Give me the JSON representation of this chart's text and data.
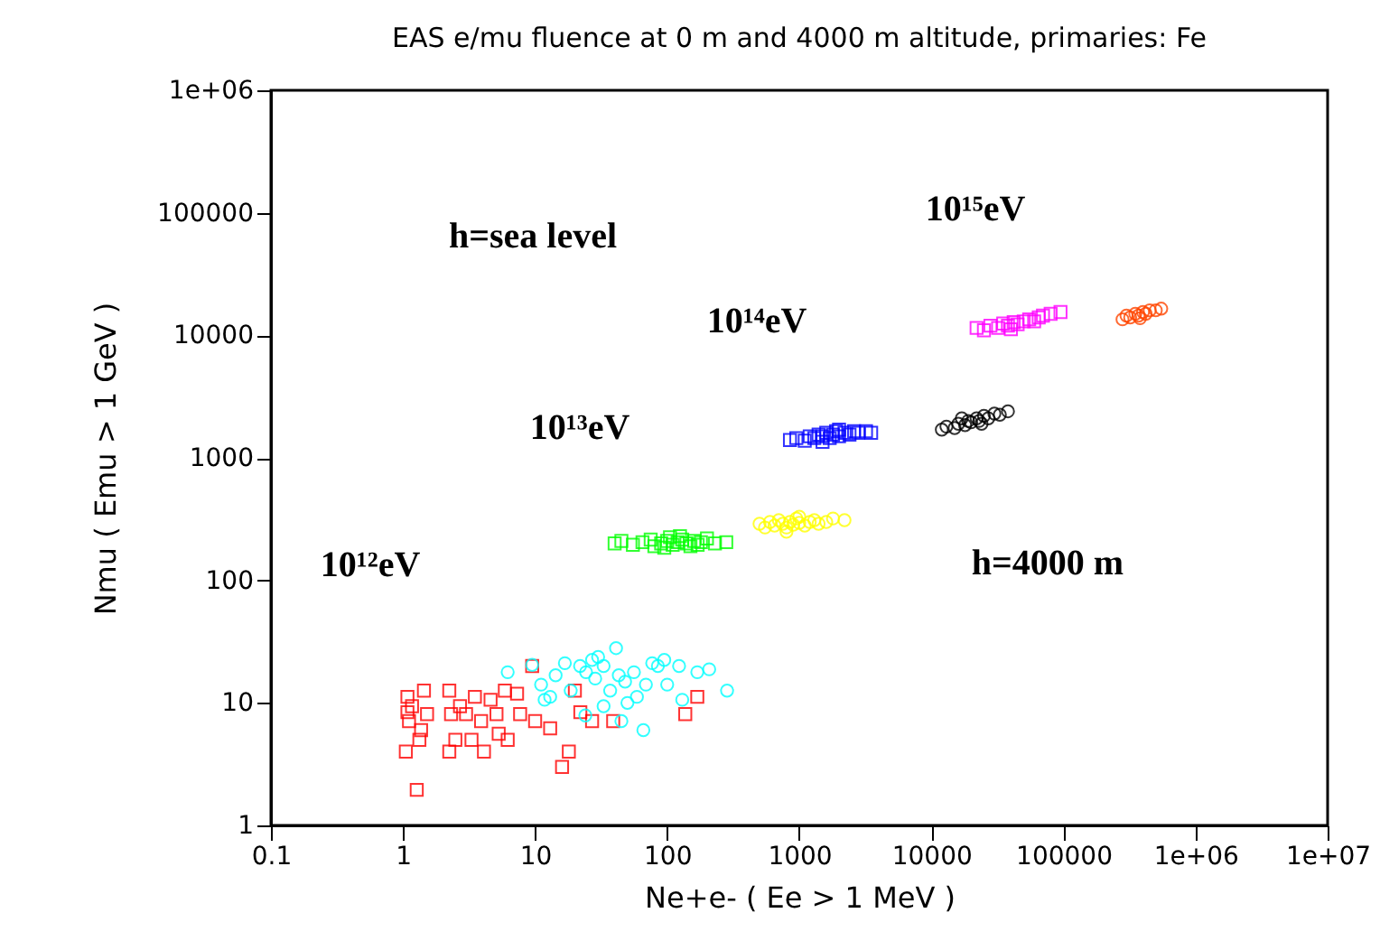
{
  "chart_data": {
    "type": "scatter",
    "title": "EAS e/mu fluence at 0 m and 4000 m altitude, primaries: Fe",
    "xlabel": "Ne+e-   ( Ee > 1 MeV )",
    "ylabel": "Nmu   ( Emu > 1 GeV )",
    "log": "xy",
    "grid": false,
    "xlim": [
      0.1,
      10000000
    ],
    "ylim": [
      1,
      1000000
    ],
    "xticks": [
      0.1,
      1,
      10,
      100,
      1000,
      10000,
      100000,
      {
        "value": 1000000,
        "label": "1e+06"
      },
      {
        "value": 10000000,
        "label": "1e+07"
      }
    ],
    "yticks": [
      1,
      10,
      100,
      1000,
      10000,
      100000,
      {
        "value": 1000000,
        "label": "1e+06"
      }
    ],
    "series": [
      {
        "color": "#ff0000",
        "marker": "square",
        "x": [
          1.08,
          1.08,
          1.11,
          1.17,
          1.05,
          1.27,
          1.37,
          1.33,
          1.44,
          1.52,
          2.24,
          2.31,
          2.24,
          2.49,
          2.7,
          3.0,
          3.3,
          3.5,
          3.9,
          4.1,
          4.6,
          5.1,
          5.3,
          5.9,
          6.2,
          7.3,
          7.7,
          9.5,
          10,
          13,
          16,
          18,
          22,
          27,
          39,
          137,
          169,
          20
        ],
        "values": [
          11.2,
          8.4,
          7.1,
          9.4,
          4.0,
          1.95,
          6.0,
          5.0,
          12.6,
          8.1,
          12.6,
          8.1,
          4.0,
          5.0,
          9.4,
          8.1,
          5.0,
          11.2,
          7.1,
          4.0,
          10.6,
          8.1,
          5.6,
          12.6,
          5.0,
          11.9,
          8.1,
          20,
          7.1,
          6.2,
          3.0,
          4.0,
          8.4,
          7.1,
          7.1,
          8.1,
          11.2,
          12.6
        ]
      },
      {
        "color": "#00ffff",
        "marker": "circle",
        "x": [
          6.2,
          9.5,
          11.1,
          11.8,
          13,
          14.3,
          16.8,
          18.6,
          21.9,
          24.3,
          27,
          28.5,
          30,
          33,
          37,
          41,
          43,
          45,
          48,
          50,
          56,
          59,
          66,
          69,
          77,
          85,
          95,
          100,
          123,
          130,
          169,
          208,
          284,
          33,
          24
        ],
        "values": [
          17.8,
          20.4,
          14.1,
          10.6,
          11.2,
          16.8,
          21.1,
          12.6,
          20,
          17.8,
          22.4,
          15.8,
          23.7,
          20,
          12.6,
          28,
          16.8,
          7.1,
          14.9,
          10,
          17.8,
          11.2,
          6.0,
          14.1,
          21.1,
          20,
          22.4,
          14.1,
          20,
          10.6,
          17.8,
          18.8,
          12.6,
          9.4,
          7.9
        ]
      },
      {
        "color": "#00ff00",
        "marker": "square",
        "x": [
          40,
          45,
          55,
          65,
          75,
          80,
          90,
          100,
          105,
          110,
          120,
          130,
          140,
          150,
          160,
          180,
          200,
          230,
          280,
          95,
          125,
          170
        ],
        "values": [
          200,
          210,
          195,
          205,
          215,
          190,
          200,
          210,
          225,
          195,
          205,
          215,
          200,
          190,
          210,
          205,
          220,
          200,
          205,
          185,
          230,
          195
        ]
      },
      {
        "color": "#ffff00",
        "marker": "circle",
        "x": [
          500,
          550,
          600,
          650,
          700,
          750,
          800,
          850,
          900,
          950,
          1000,
          1100,
          1200,
          1300,
          1400,
          1600,
          1800,
          2200,
          800,
          1000
        ],
        "values": [
          290,
          270,
          300,
          280,
          310,
          290,
          270,
          300,
          285,
          320,
          295,
          280,
          300,
          310,
          290,
          300,
          320,
          310,
          250,
          330
        ]
      },
      {
        "color": "#0000ff",
        "marker": "square",
        "x": [
          850,
          950,
          1100,
          1200,
          1300,
          1400,
          1500,
          1600,
          1700,
          1800,
          1900,
          2000,
          2200,
          2400,
          2600,
          2800,
          3200,
          3500,
          1500,
          2000
        ],
        "values": [
          1400,
          1450,
          1380,
          1500,
          1450,
          1550,
          1500,
          1600,
          1450,
          1550,
          1650,
          1500,
          1600,
          1550,
          1650,
          1600,
          1650,
          1600,
          1350,
          1700
        ]
      },
      {
        "color": "#000000",
        "marker": "circle",
        "x": [
          12000,
          13000,
          15000,
          16000,
          18000,
          19000,
          20000,
          22000,
          23000,
          25000,
          27000,
          30000,
          33000,
          38000,
          17000,
          24000
        ],
        "values": [
          1700,
          1800,
          1750,
          1900,
          1850,
          2000,
          1950,
          2100,
          2000,
          2200,
          2100,
          2300,
          2250,
          2400,
          2100,
          1900
        ]
      },
      {
        "color": "#ff00ff",
        "marker": "square",
        "x": [
          22000,
          25000,
          28000,
          32000,
          35000,
          38000,
          42000,
          45000,
          50000,
          55000,
          60000,
          65000,
          70000,
          80000,
          95000,
          40000
        ],
        "values": [
          11500,
          11000,
          12000,
          11500,
          12500,
          12000,
          12800,
          12300,
          13000,
          13500,
          13000,
          14000,
          14500,
          15000,
          15500,
          11200
        ]
      },
      {
        "color": "#ff4500",
        "marker": "circle",
        "x": [
          280000,
          300000,
          320000,
          350000,
          370000,
          400000,
          420000,
          450000,
          500000,
          550000,
          380000
        ],
        "values": [
          13500,
          14500,
          14000,
          15000,
          14500,
          15500,
          15000,
          16000,
          16000,
          16500,
          13800
        ]
      }
    ],
    "annotations": [
      "10¹²eV",
      "10¹³eV",
      "10¹⁴eV",
      "10¹⁵eV",
      "h=sea level",
      "h=4000 m"
    ]
  }
}
